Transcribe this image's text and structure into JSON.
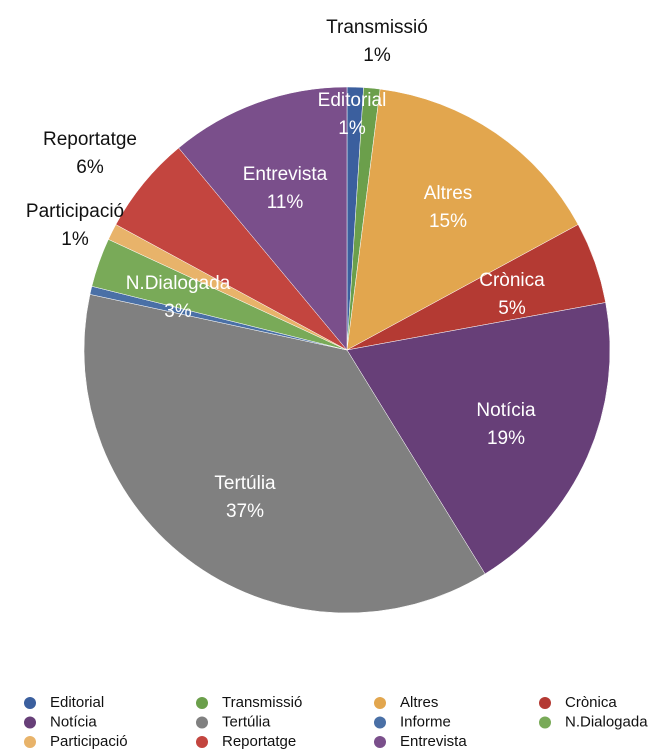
{
  "chart_data": {
    "type": "pie",
    "categories": [
      "Editorial",
      "Transmissió",
      "Altres",
      "Crònica",
      "Notícia",
      "Tertúlia",
      "Informe",
      "N.Dialogada",
      "Participació",
      "Reportatge",
      "Entrevista"
    ],
    "values": [
      1,
      1,
      15,
      5,
      19,
      37,
      0.5,
      3,
      1,
      6,
      11
    ],
    "value_labels": [
      "1%",
      "1%",
      "15%",
      "5%",
      "19%",
      "37%",
      null,
      "3%",
      "1%",
      "6%",
      "11%"
    ],
    "colors": [
      "#3b5f9e",
      "#6b9f4b",
      "#e2a64e",
      "#b43a33",
      "#673f78",
      "#808080",
      "#4a70a6",
      "#79aa58",
      "#e8b36a",
      "#c3453f",
      "#7a4f8b"
    ],
    "legend": "bottom"
  }
}
